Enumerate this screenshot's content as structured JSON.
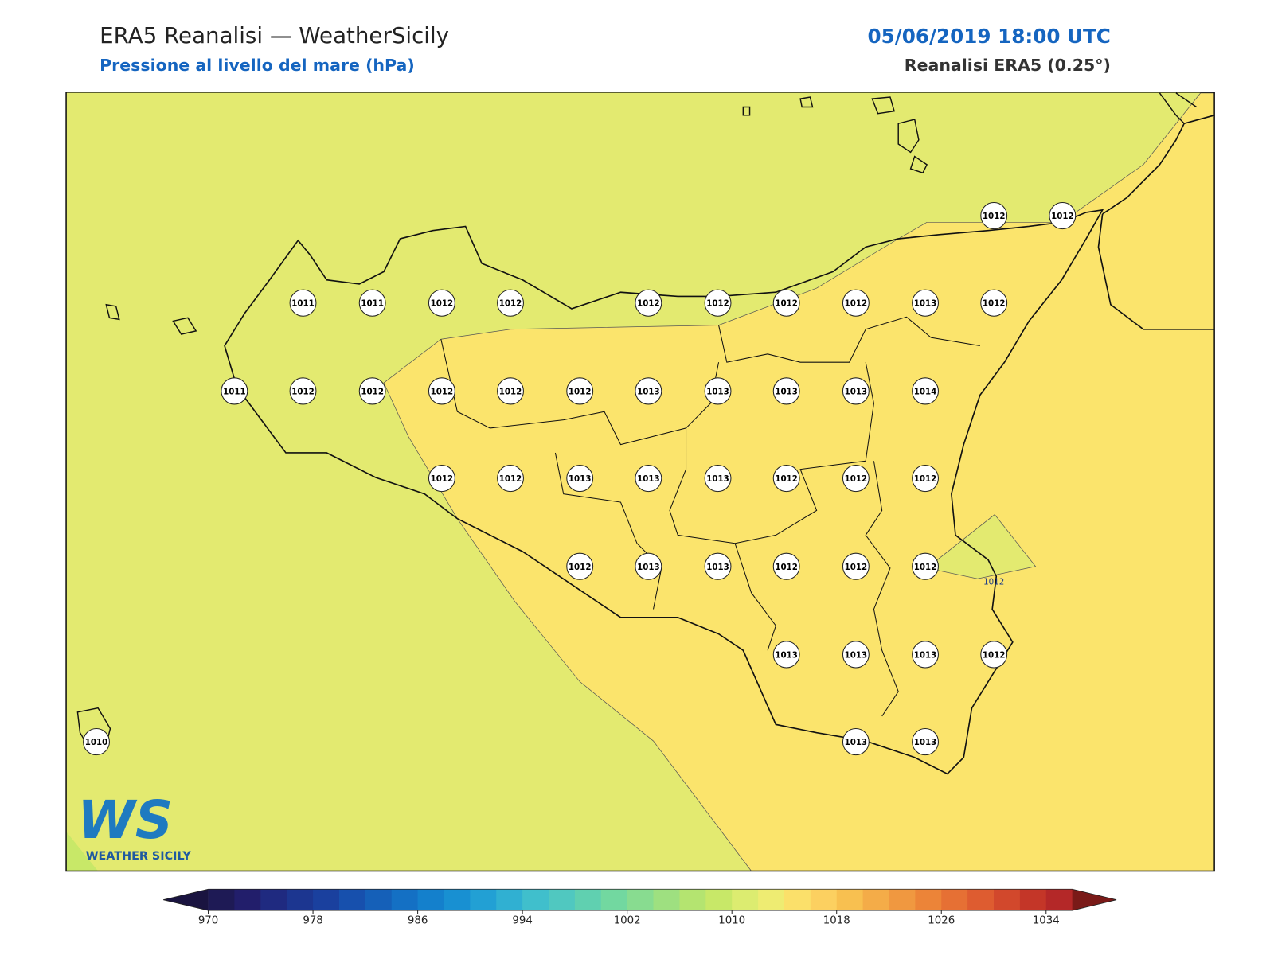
{
  "header": {
    "title": "ERA5 Reanalisi — WeatherSicily",
    "subtitle": "Pressione al livello del mare (hPa)",
    "datetime": "05/06/2019 18:00 UTC",
    "source": "Reanalisi ERA5 (0.25°)"
  },
  "stations": [
    1011,
    1011,
    1012,
    1012,
    1012,
    1012,
    1012,
    1012,
    1013,
    1012,
    1012,
    1012,
    1011,
    1012,
    1012,
    1012,
    1012,
    1012,
    1013,
    1013,
    1013,
    1013,
    1014,
    1012,
    1012,
    1013,
    1013,
    1013,
    1012,
    1012,
    1012,
    1012,
    1013,
    1013,
    1012,
    1012,
    1012,
    1013,
    1013,
    1013,
    1012,
    1013,
    1013,
    1010
  ],
  "contour_labels": [
    1012
  ],
  "colorbar": {
    "vlim": [
      970,
      1036
    ],
    "ticks": [
      970,
      978,
      986,
      994,
      1002,
      1010,
      1018,
      1026,
      1034
    ],
    "colors": [
      "#1e1a55",
      "#221e6b",
      "#1f2a80",
      "#1c3690",
      "#1a409e",
      "#1750ad",
      "#1560b8",
      "#1470c4",
      "#1480cc",
      "#1890d2",
      "#22a0d4",
      "#30b0d2",
      "#40bfcc",
      "#50c8c0",
      "#60d0b0",
      "#72d8a0",
      "#88dc90",
      "#9ee080",
      "#b4e470",
      "#c8e868",
      "#dcec70",
      "#eeec72",
      "#fbe06a",
      "#fcd060",
      "#f8c050",
      "#f4ac48",
      "#f09840",
      "#ec8438",
      "#e67034",
      "#de5c30",
      "#d2482c",
      "#c43628",
      "#b42828"
    ],
    "under_color": "#1a1440",
    "over_color": "#7a1a18"
  },
  "logo": {
    "mark": "WS",
    "name": "WEATHER SICILY"
  }
}
